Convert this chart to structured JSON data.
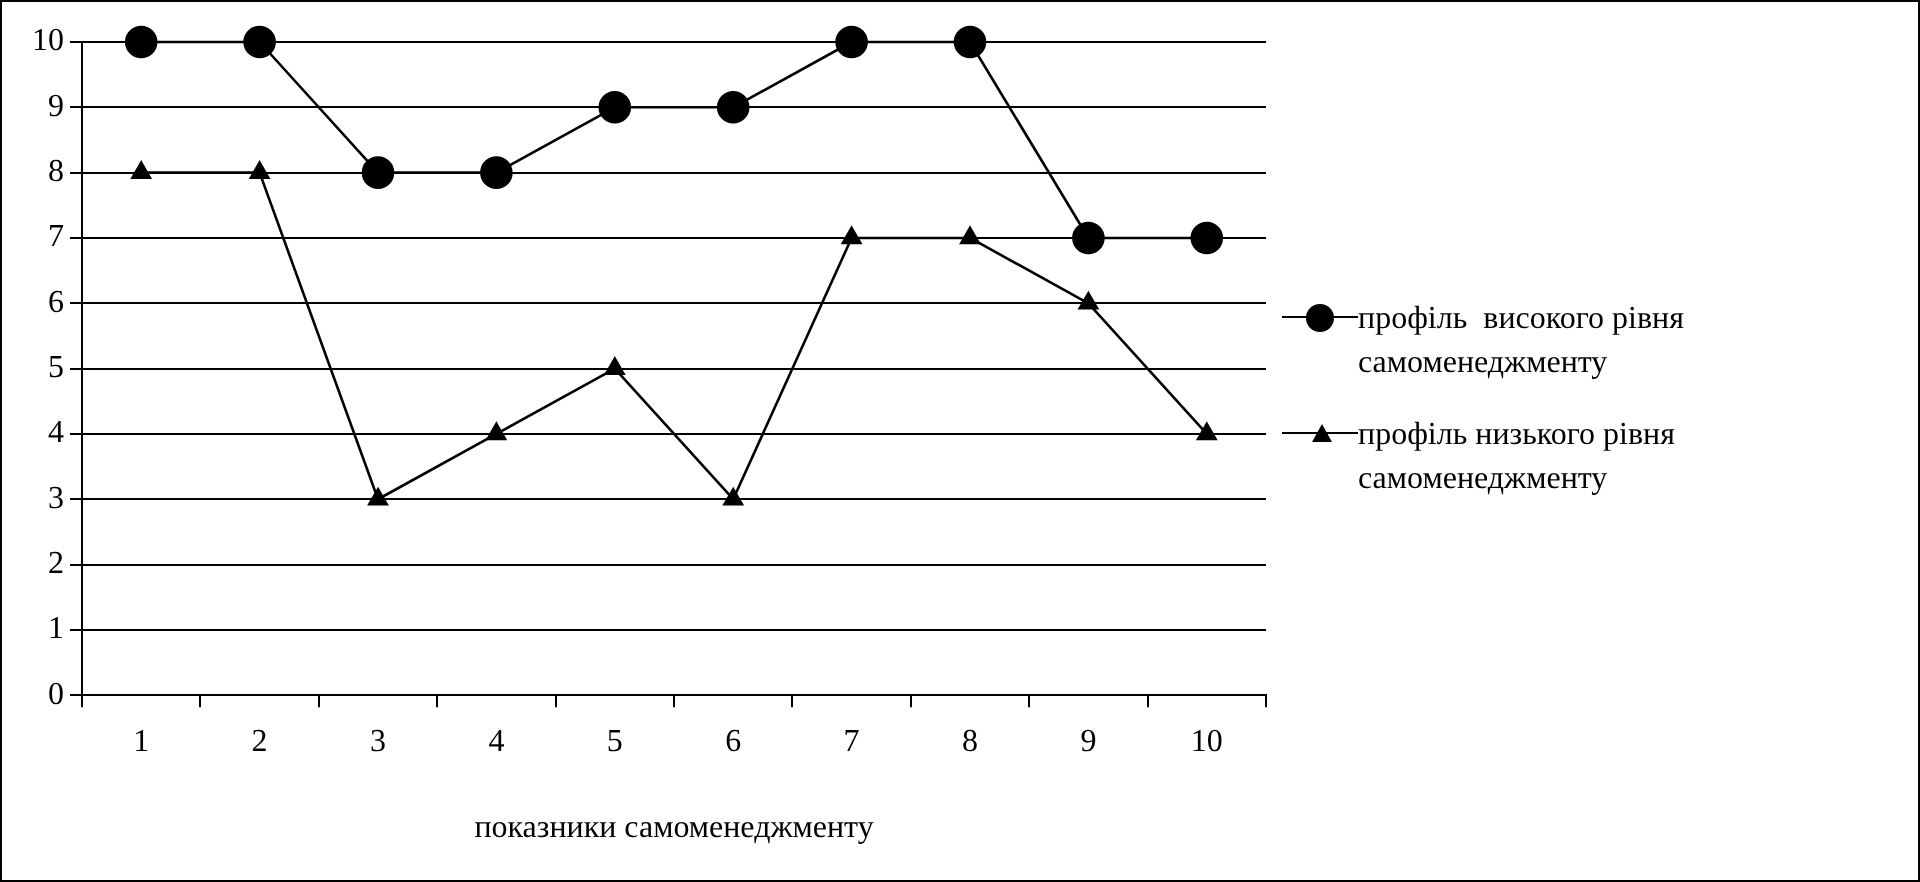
{
  "chart_data": {
    "type": "line",
    "xlabel": "показники самоменеджменту",
    "categories": [
      "1",
      "2",
      "3",
      "4",
      "5",
      "6",
      "7",
      "8",
      "9",
      "10"
    ],
    "series": [
      {
        "name": "профіль  високого рівня самоменеджменту",
        "color": "#000000",
        "marker": "circle",
        "values": [
          10,
          10,
          8,
          8,
          9,
          9,
          10,
          10,
          7,
          7
        ]
      },
      {
        "name": "профіль низького рівня самоменеджменту",
        "color": "#000000",
        "marker": "triangle",
        "values": [
          8,
          8,
          3,
          4,
          5,
          3,
          7,
          7,
          6,
          4
        ]
      }
    ],
    "ylim": [
      0,
      10
    ],
    "yticks": [
      0,
      1,
      2,
      3,
      4,
      5,
      6,
      7,
      8,
      9,
      10
    ],
    "grid": "y",
    "legend": "right",
    "line_style": "solid"
  }
}
